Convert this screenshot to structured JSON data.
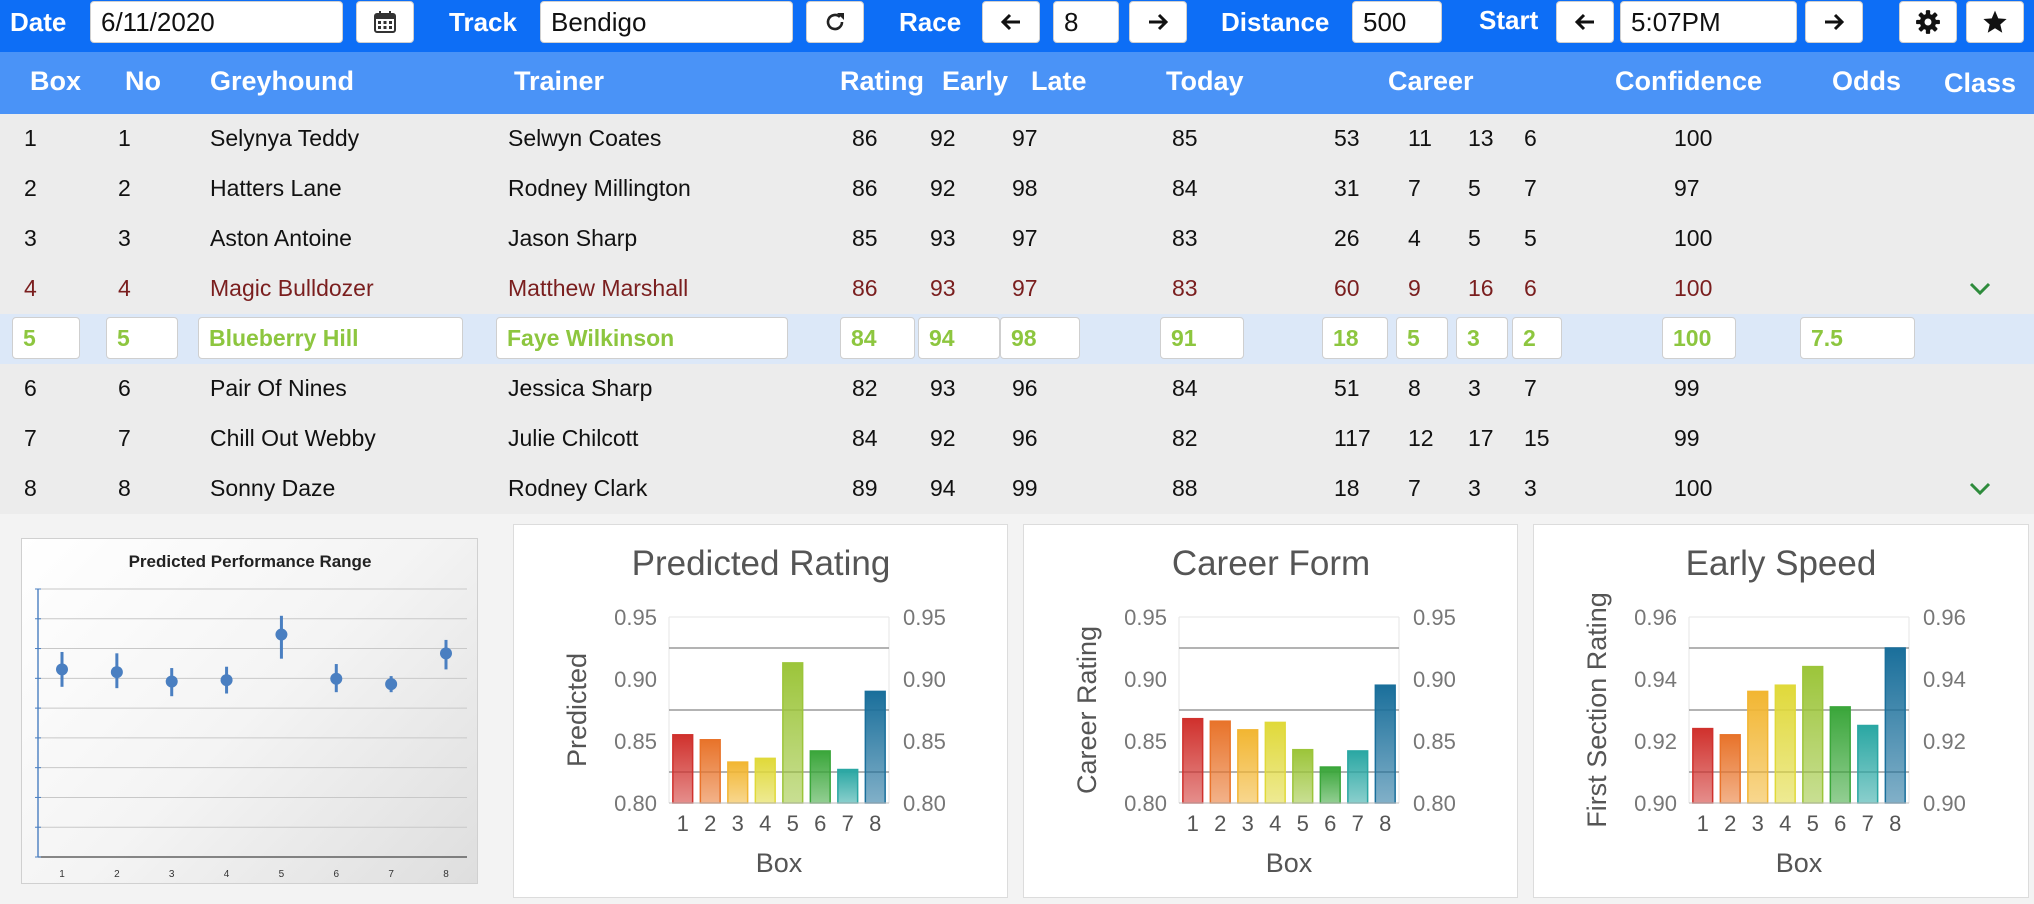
{
  "toolbar": {
    "date_label": "Date",
    "date_value": "6/11/2020",
    "track_label": "Track",
    "track_value": "Bendigo",
    "race_label": "Race",
    "race_value": "8",
    "distance_label": "Distance",
    "distance_value": "500",
    "start_label": "Start",
    "start_value": "5:07PM",
    "icons": [
      "calendar-icon",
      "refresh-icon",
      "arrow-left-icon",
      "arrow-right-icon",
      "gear-icon",
      "star-icon"
    ]
  },
  "table": {
    "headers": {
      "box": "Box",
      "no": "No",
      "greyhound": "Greyhound",
      "trainer": "Trainer",
      "rating": "Rating",
      "early": "Early",
      "late": "Late",
      "today": "Today",
      "career": "Career",
      "confidence": "Confidence",
      "odds": "Odds",
      "class": "Class"
    },
    "rows": [
      {
        "box": "1",
        "no": "1",
        "greyhound": "Selynya Teddy",
        "trainer": "Selwyn Coates",
        "rating": "86",
        "early": "92",
        "late": "97",
        "today": "85",
        "c1": "53",
        "c2": "11",
        "c3": "13",
        "c4": "6",
        "confidence": "100",
        "odds": "",
        "class_chevron": false,
        "style": "normal"
      },
      {
        "box": "2",
        "no": "2",
        "greyhound": "Hatters Lane",
        "trainer": "Rodney Millington",
        "rating": "86",
        "early": "92",
        "late": "98",
        "today": "84",
        "c1": "31",
        "c2": "7",
        "c3": "5",
        "c4": "7",
        "confidence": "97",
        "odds": "",
        "class_chevron": false,
        "style": "normal"
      },
      {
        "box": "3",
        "no": "3",
        "greyhound": "Aston Antoine",
        "trainer": "Jason Sharp",
        "rating": "85",
        "early": "93",
        "late": "97",
        "today": "83",
        "c1": "26",
        "c2": "4",
        "c3": "5",
        "c4": "5",
        "confidence": "100",
        "odds": "",
        "class_chevron": false,
        "style": "normal"
      },
      {
        "box": "4",
        "no": "4",
        "greyhound": "Magic Bulldozer",
        "trainer": "Matthew Marshall",
        "rating": "86",
        "early": "93",
        "late": "97",
        "today": "83",
        "c1": "60",
        "c2": "9",
        "c3": "16",
        "c4": "6",
        "confidence": "100",
        "odds": "",
        "class_chevron": true,
        "style": "flag"
      },
      {
        "box": "5",
        "no": "5",
        "greyhound": "Blueberry Hill",
        "trainer": "Faye Wilkinson",
        "rating": "84",
        "early": "94",
        "late": "98",
        "today": "91",
        "c1": "18",
        "c2": "5",
        "c3": "3",
        "c4": "2",
        "confidence": "100",
        "odds": "7.5",
        "class_chevron": false,
        "style": "sel"
      },
      {
        "box": "6",
        "no": "6",
        "greyhound": "Pair Of Nines",
        "trainer": "Jessica Sharp",
        "rating": "82",
        "early": "93",
        "late": "96",
        "today": "84",
        "c1": "51",
        "c2": "8",
        "c3": "3",
        "c4": "7",
        "confidence": "99",
        "odds": "",
        "class_chevron": false,
        "style": "normal"
      },
      {
        "box": "7",
        "no": "7",
        "greyhound": "Chill Out Webby",
        "trainer": "Julie Chilcott",
        "rating": "84",
        "early": "92",
        "late": "96",
        "today": "82",
        "c1": "117",
        "c2": "12",
        "c3": "17",
        "c4": "15",
        "confidence": "99",
        "odds": "",
        "class_chevron": false,
        "style": "normal"
      },
      {
        "box": "8",
        "no": "8",
        "greyhound": "Sonny Daze",
        "trainer": "Rodney Clark",
        "rating": "89",
        "early": "94",
        "late": "99",
        "today": "88",
        "c1": "18",
        "c2": "7",
        "c3": "3",
        "c4": "3",
        "confidence": "100",
        "odds": "",
        "class_chevron": true,
        "style": "normal"
      }
    ]
  },
  "colors": {
    "toolbar_bg": "#0d6ef6",
    "header_bg": "#4a93f7",
    "selected_text": "#8dc63f",
    "flag_text": "#7a1e1e",
    "chevron": "#2e8b3c",
    "range_marker": "#4a7fc1",
    "bar_colors": [
      "#d0312d",
      "#e8732a",
      "#f2b632",
      "#e0d93a",
      "#9cc53a",
      "#3aa63a",
      "#2aa7a3",
      "#1a6f9b"
    ]
  },
  "chart_data": [
    {
      "type": "scatter",
      "title": "Predicted Performance Range",
      "categories": [
        "1",
        "2",
        "3",
        "4",
        "5",
        "6",
        "7",
        "8"
      ],
      "values": [
        0.7,
        0.69,
        0.655,
        0.66,
        0.83,
        0.665,
        0.645,
        0.76
      ],
      "low": [
        0.635,
        0.63,
        0.6,
        0.61,
        0.74,
        0.615,
        0.615,
        0.7
      ],
      "high": [
        0.765,
        0.76,
        0.705,
        0.71,
        0.9,
        0.72,
        0.675,
        0.81
      ],
      "ylim": [
        0.0,
        1.0
      ],
      "xlabel": "",
      "ylabel": ""
    },
    {
      "type": "bar",
      "title": "Predicted Rating",
      "categories": [
        "1",
        "2",
        "3",
        "4",
        "5",
        "6",
        "7",
        "8"
      ],
      "values": [
        0.855,
        0.851,
        0.833,
        0.836,
        0.913,
        0.842,
        0.827,
        0.89
      ],
      "ylim": [
        0.8,
        0.95
      ],
      "yticks": [
        "0.80",
        "0.85",
        "0.90",
        "0.95"
      ],
      "ref_lines": [
        0.825,
        0.875,
        0.925
      ],
      "xlabel": "Box",
      "ylabel": "Predicted",
      "grid": false
    },
    {
      "type": "bar",
      "title": "Career Form",
      "categories": [
        "1",
        "2",
        "3",
        "4",
        "5",
        "6",
        "7",
        "8"
      ],
      "values": [
        0.868,
        0.866,
        0.859,
        0.865,
        0.843,
        0.829,
        0.842,
        0.895
      ],
      "ylim": [
        0.8,
        0.95
      ],
      "yticks": [
        "0.80",
        "0.85",
        "0.90",
        "0.95"
      ],
      "ref_lines": [
        0.825,
        0.875,
        0.925
      ],
      "xlabel": "Box",
      "ylabel": "Career Rating",
      "grid": false
    },
    {
      "type": "bar",
      "title": "Early Speed",
      "categories": [
        "1",
        "2",
        "3",
        "4",
        "5",
        "6",
        "7",
        "8"
      ],
      "values": [
        0.924,
        0.922,
        0.936,
        0.938,
        0.944,
        0.931,
        0.925,
        0.95
      ],
      "ylim": [
        0.9,
        0.96
      ],
      "yticks": [
        "0.90",
        "0.92",
        "0.94",
        "0.96"
      ],
      "ref_lines": [
        0.91,
        0.93,
        0.95
      ],
      "xlabel": "Box",
      "ylabel": "First Section Rating",
      "grid": false
    }
  ]
}
